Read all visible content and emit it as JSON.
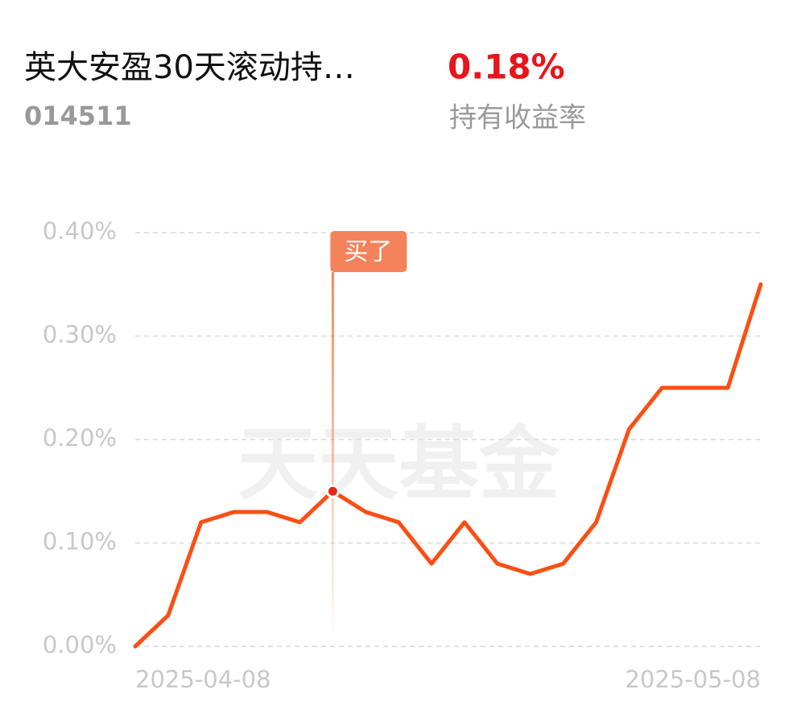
{
  "header": {
    "title": "英大安盈30天滚动持…",
    "code": "014511",
    "return": "0.18%",
    "return_label": "持有收益率"
  },
  "chart_data": {
    "type": "line",
    "watermark": "天天基金",
    "categories": [
      "2025-04-08",
      null,
      null,
      null,
      null,
      null,
      null,
      null,
      null,
      null,
      null,
      null,
      null,
      null,
      null,
      null,
      null,
      null,
      null,
      "2025-05-08"
    ],
    "series": [
      {
        "name": "收益率",
        "color": "#fa4f14",
        "values": [
          0.0,
          0.03,
          0.12,
          0.13,
          0.13,
          0.12,
          0.15,
          0.13,
          0.12,
          0.08,
          0.12,
          0.08,
          0.07,
          0.08,
          0.12,
          0.21,
          0.25,
          0.25,
          0.25,
          0.35
        ]
      }
    ],
    "ylim": [
      0,
      0.4
    ],
    "yticks": [
      {
        "value": 0,
        "label": "0.00%"
      },
      {
        "value": 0.1,
        "label": "0.10%"
      },
      {
        "value": 0.2,
        "label": "0.20%"
      },
      {
        "value": 0.3,
        "label": "0.30%"
      },
      {
        "value": 0.4,
        "label": "0.40%"
      }
    ],
    "grid": true,
    "buy_marker": {
      "label": "买了",
      "index": 6,
      "color": "#f5825a"
    }
  }
}
